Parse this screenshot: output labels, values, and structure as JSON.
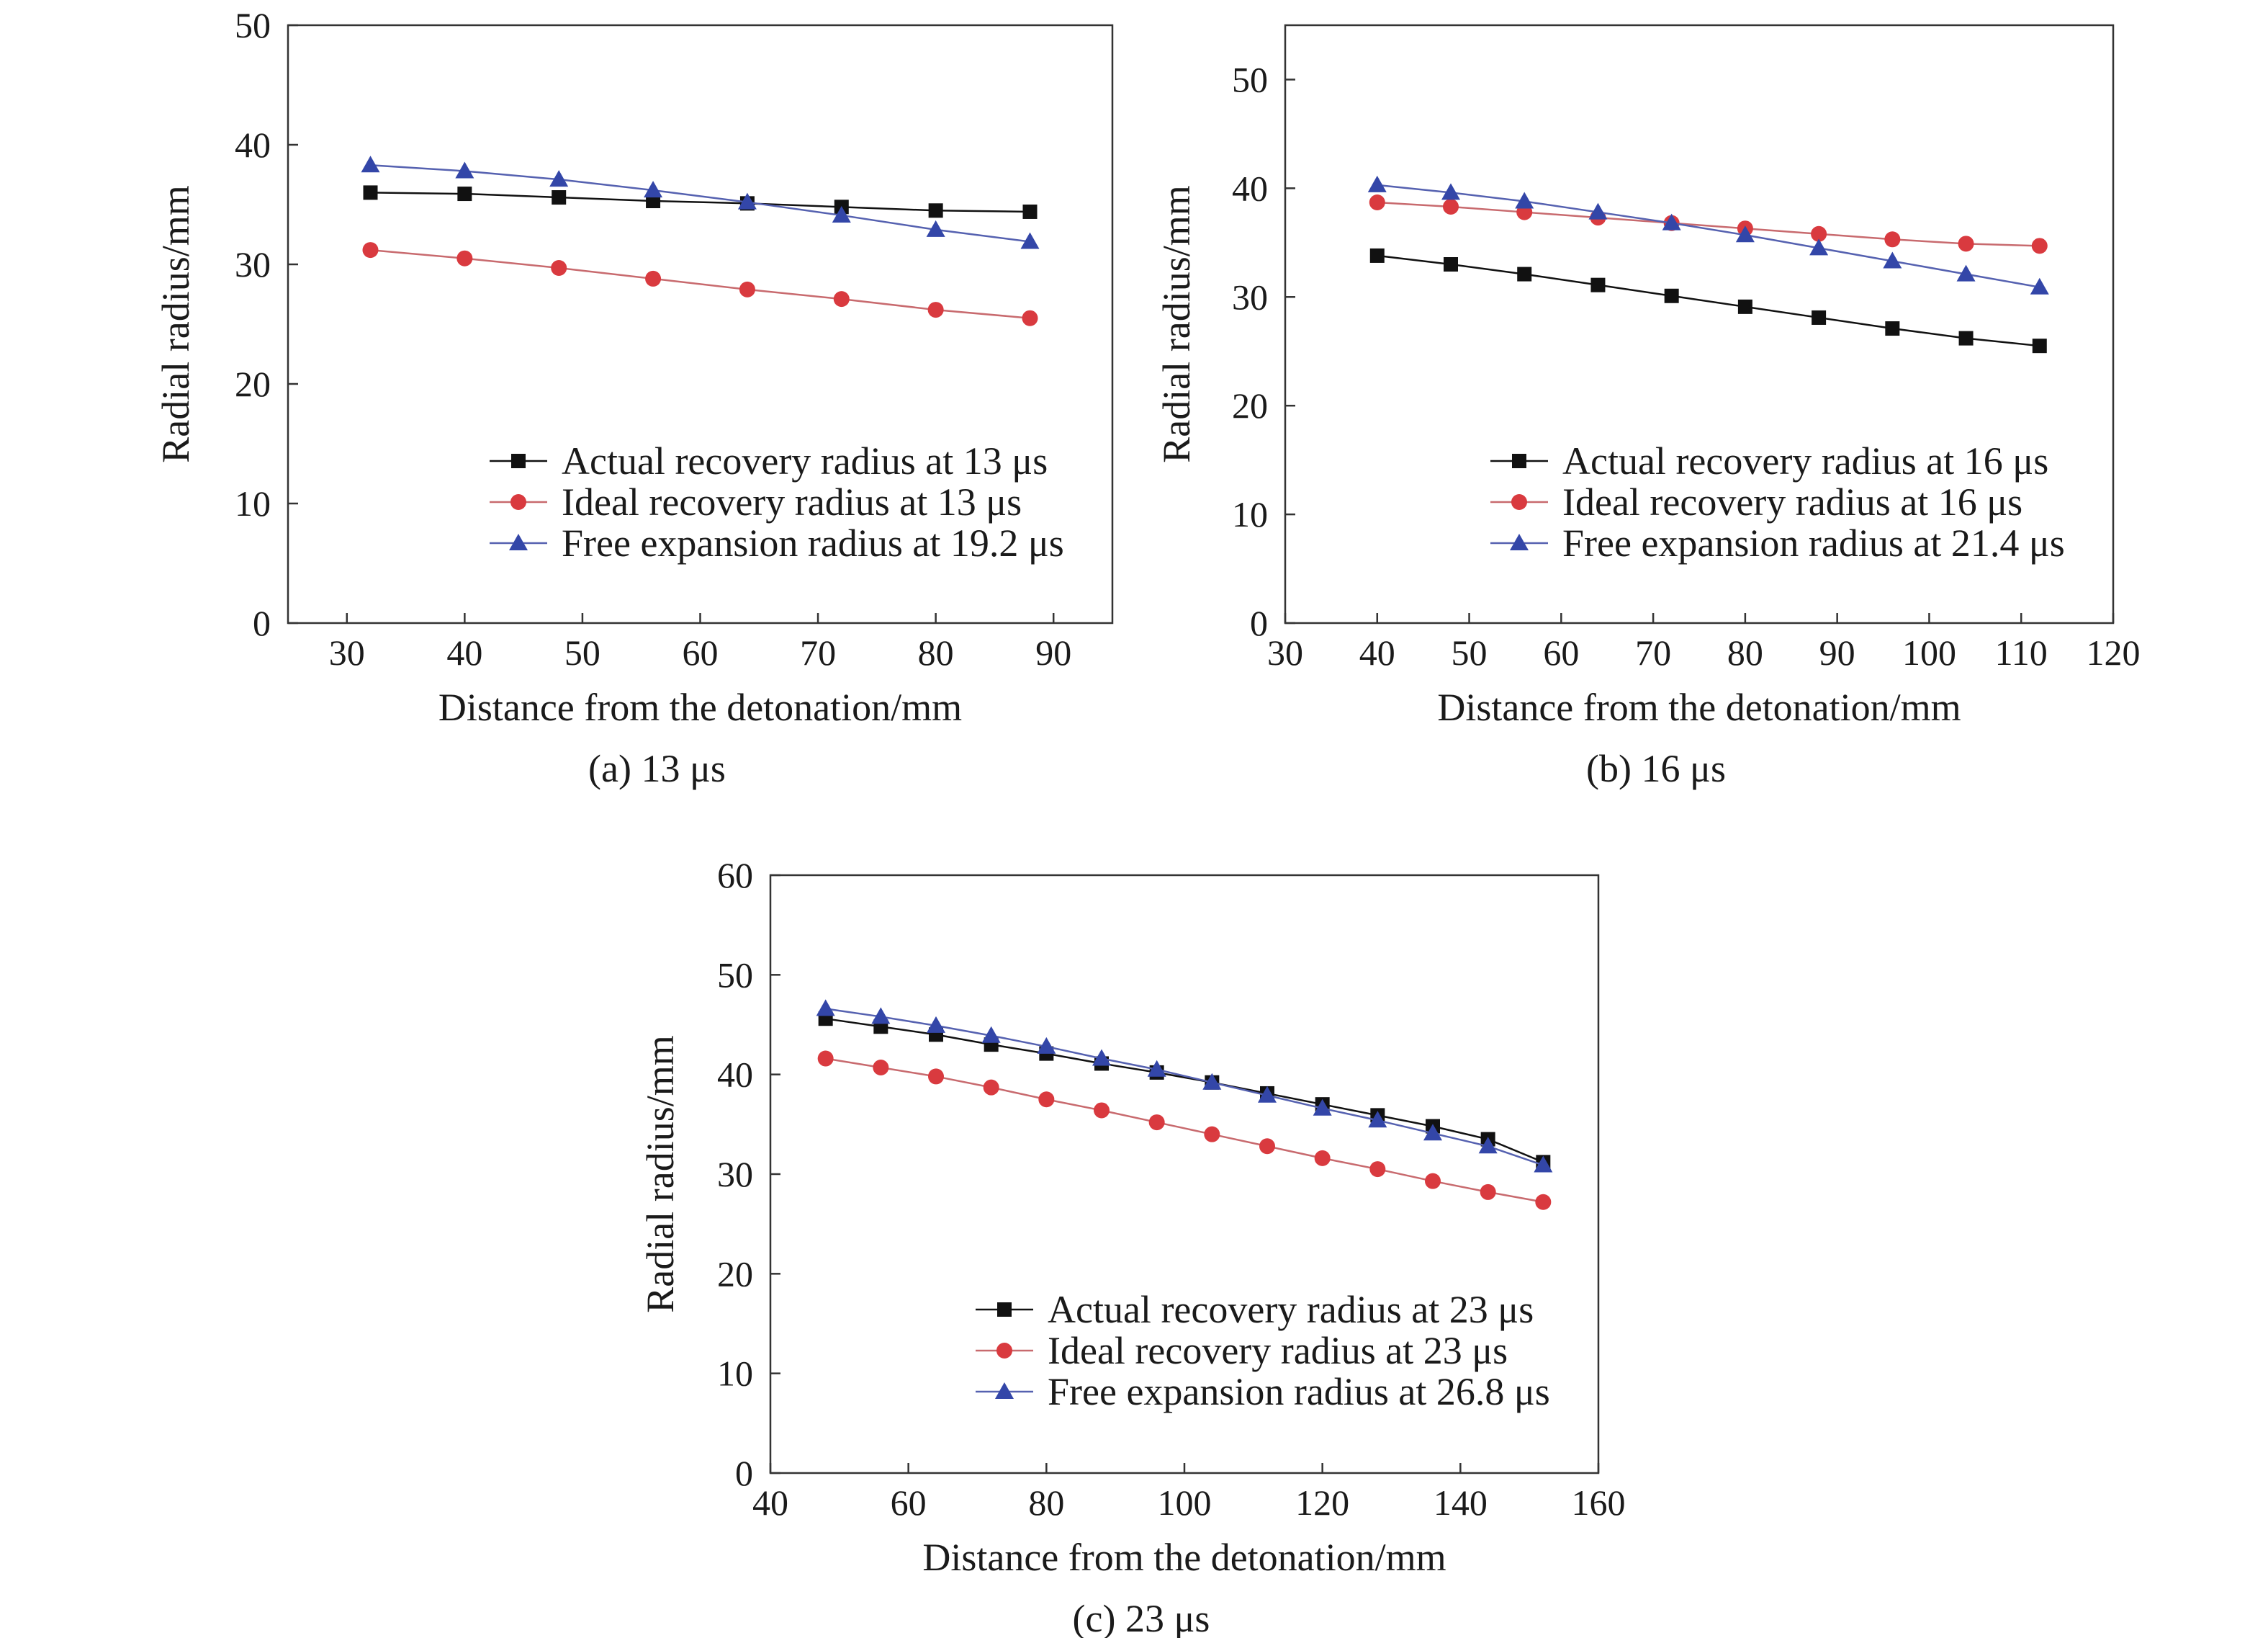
{
  "colors": {
    "actual": "#111111",
    "ideal": "#d93a3f",
    "free": "#3346a8",
    "ideal_line": "#c86a6e",
    "free_line": "#5561b0"
  },
  "chart_data": [
    {
      "type": "line",
      "caption": "(a) 13 μs",
      "xlabel": "Distance from the detonation/mm",
      "ylabel": "Radial radius/mm",
      "xlim": [
        25,
        95
      ],
      "ylim": [
        0,
        50
      ],
      "xticks": [
        30,
        40,
        50,
        60,
        70,
        80,
        90
      ],
      "yticks": [
        0,
        10,
        20,
        30,
        40,
        50
      ],
      "legend_position": "bottom-right",
      "x": [
        32,
        40,
        48,
        56,
        64,
        72,
        80,
        88
      ],
      "series": [
        {
          "name": "Actual recovery radius at 13 μs",
          "marker": "square",
          "values": [
            36.0,
            35.9,
            35.6,
            35.3,
            35.1,
            34.8,
            34.5,
            34.4
          ]
        },
        {
          "name": "Ideal recovery radius at 13 μs",
          "marker": "circle",
          "values": [
            31.2,
            30.5,
            29.7,
            28.8,
            27.9,
            27.1,
            26.2,
            25.5
          ]
        },
        {
          "name": "Free expansion radius at 19.2 μs",
          "marker": "triangle",
          "values": [
            38.3,
            37.8,
            37.1,
            36.2,
            35.2,
            34.1,
            32.9,
            31.9
          ]
        }
      ]
    },
    {
      "type": "line",
      "caption": "(b) 16 μs",
      "xlabel": "Distance from the detonation/mm",
      "ylabel": "Radial radius/mm",
      "xlim": [
        30,
        120
      ],
      "ylim": [
        0,
        55
      ],
      "xticks": [
        30,
        40,
        50,
        60,
        70,
        80,
        90,
        100,
        110,
        120
      ],
      "yticks": [
        0,
        10,
        20,
        30,
        40,
        50
      ],
      "legend_position": "bottom-right",
      "x": [
        40,
        48,
        56,
        64,
        72,
        80,
        88,
        96,
        104,
        112
      ],
      "series": [
        {
          "name": "Actual recovery radius at 16 μs",
          "marker": "square",
          "values": [
            33.8,
            33.0,
            32.1,
            31.1,
            30.1,
            29.1,
            28.1,
            27.1,
            26.2,
            25.5
          ]
        },
        {
          "name": "Ideal recovery radius at 16 μs",
          "marker": "circle",
          "values": [
            38.7,
            38.3,
            37.8,
            37.3,
            36.8,
            36.3,
            35.8,
            35.3,
            34.9,
            34.7
          ]
        },
        {
          "name": "Free expansion radius at 21.4 μs",
          "marker": "triangle",
          "values": [
            40.3,
            39.6,
            38.8,
            37.8,
            36.8,
            35.7,
            34.5,
            33.3,
            32.1,
            30.9
          ]
        }
      ]
    },
    {
      "type": "line",
      "caption": "(c) 23 μs",
      "xlabel": "Distance from the detonation/mm",
      "ylabel": "Radial radius/mm",
      "xlim": [
        40,
        160
      ],
      "ylim": [
        0,
        60
      ],
      "xticks": [
        40,
        60,
        80,
        100,
        120,
        140,
        160
      ],
      "yticks": [
        0,
        10,
        20,
        30,
        40,
        50,
        60
      ],
      "legend_position": "bottom-right",
      "x": [
        48,
        56,
        64,
        72,
        80,
        88,
        96,
        104,
        112,
        120,
        128,
        136,
        144,
        152
      ],
      "series": [
        {
          "name": "Actual recovery radius at 23 μs",
          "marker": "square",
          "values": [
            45.6,
            44.8,
            44.0,
            43.0,
            42.1,
            41.1,
            40.2,
            39.2,
            38.1,
            37.0,
            35.9,
            34.8,
            33.5,
            31.2
          ]
        },
        {
          "name": "Ideal recovery radius at 23 μs",
          "marker": "circle",
          "values": [
            41.6,
            40.7,
            39.8,
            38.7,
            37.5,
            36.4,
            35.2,
            34.0,
            32.8,
            31.6,
            30.5,
            29.3,
            28.2,
            27.2
          ]
        },
        {
          "name": "Free expansion radius at 26.8 μs",
          "marker": "triangle",
          "values": [
            46.6,
            45.8,
            44.9,
            43.9,
            42.8,
            41.6,
            40.5,
            39.2,
            37.9,
            36.6,
            35.4,
            34.1,
            32.8,
            30.9
          ]
        }
      ]
    }
  ]
}
